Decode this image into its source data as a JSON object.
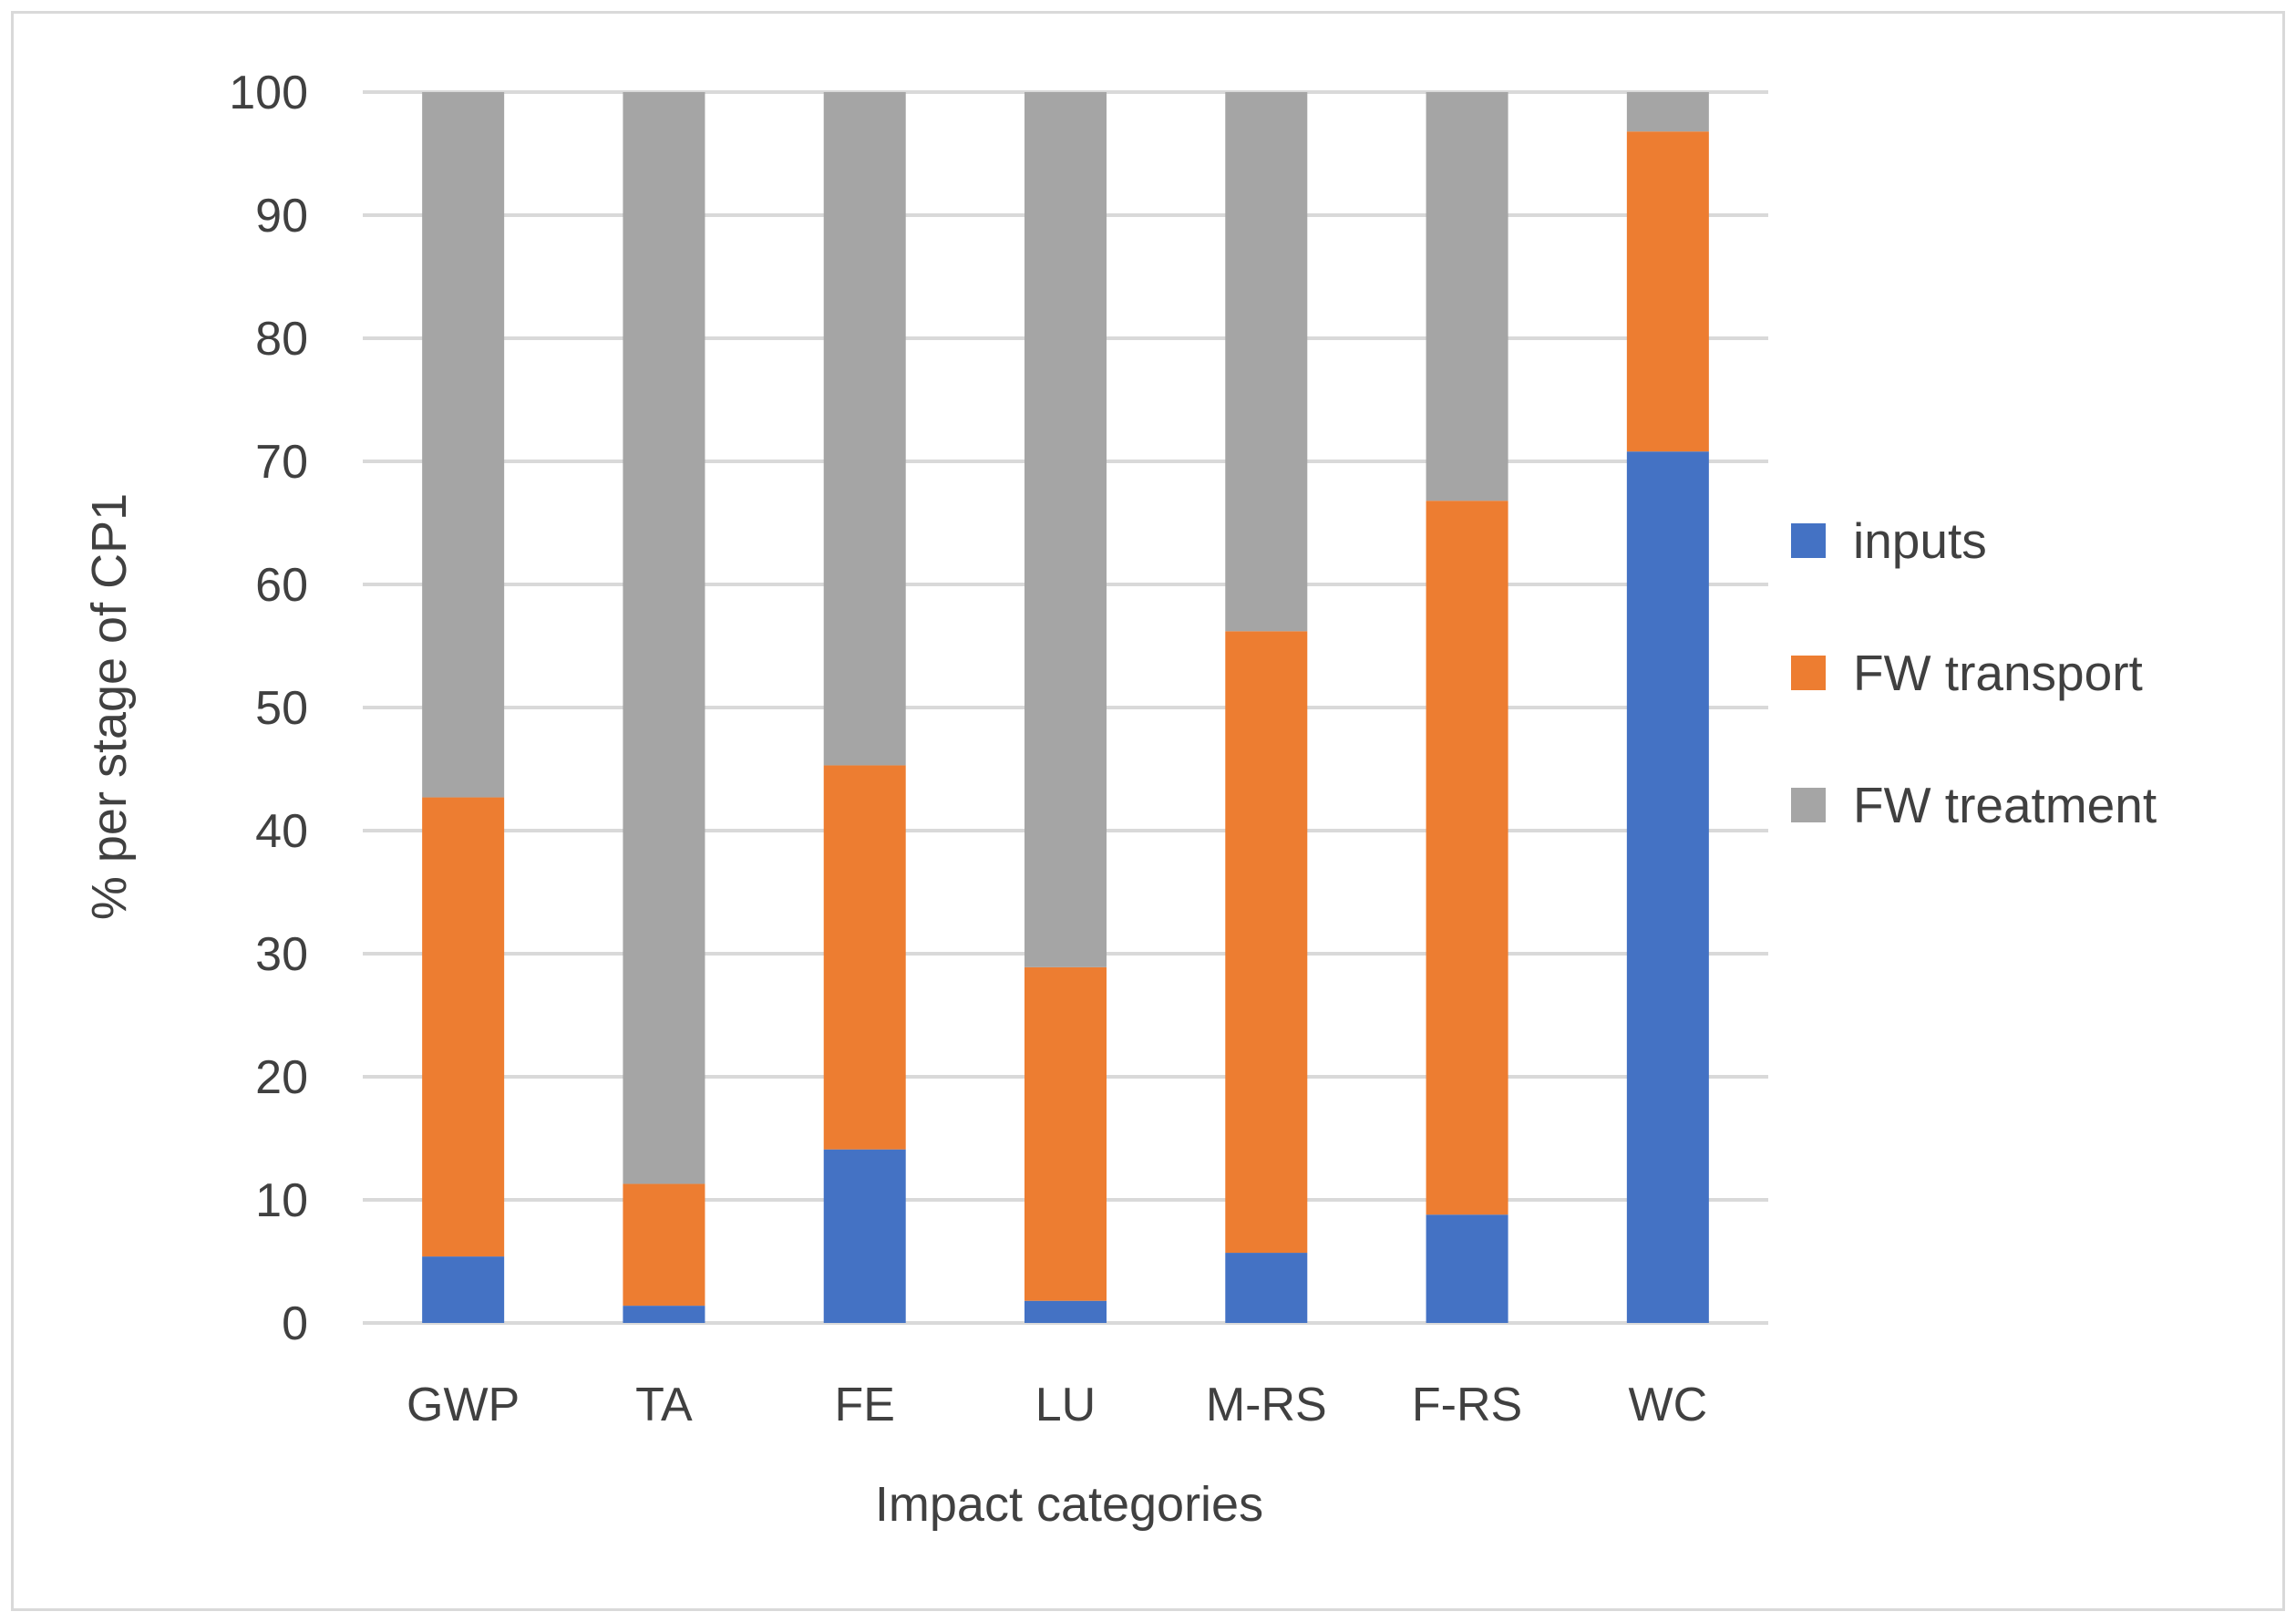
{
  "chart_data": {
    "type": "bar",
    "stacked": true,
    "title": "",
    "xlabel": "Impact categories",
    "ylabel": "% per stage of CP1",
    "ylim": [
      0,
      100
    ],
    "yticks": [
      0,
      10,
      20,
      30,
      40,
      50,
      60,
      70,
      80,
      90,
      100
    ],
    "grid": true,
    "legend_position": "right",
    "categories": [
      "GWP",
      "TA",
      "FE",
      "LU",
      "M-RS",
      "F-RS",
      "WC"
    ],
    "series": [
      {
        "name": "inputs",
        "color": "#4472C4",
        "values": [
          5.4,
          1.4,
          14.1,
          1.8,
          5.7,
          8.8,
          70.8
        ]
      },
      {
        "name": "FW transport",
        "color": "#ED7D31",
        "values": [
          37.3,
          9.9,
          31.2,
          27.1,
          50.5,
          58.0,
          26.0
        ]
      },
      {
        "name": "FW treatment",
        "color": "#A5A5A5",
        "values": [
          57.3,
          88.7,
          54.7,
          71.1,
          43.8,
          33.2,
          3.2
        ]
      }
    ]
  },
  "colors": {
    "grid": "#d9d9d9",
    "text": "#404040",
    "frame": "#d9d9d9"
  }
}
